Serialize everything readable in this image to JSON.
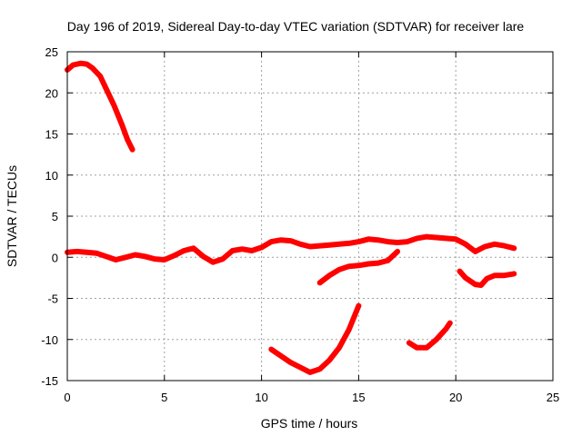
{
  "chart_data": {
    "type": "line",
    "title": "Day 196 of 2019, Sidereal Day-to-day VTEC variation (SDTVAR) for receiver lare",
    "xlabel": "GPS time / hours",
    "ylabel": "SDTVAR / TECUs",
    "xlim": [
      0,
      25
    ],
    "ylim": [
      -15,
      25
    ],
    "xticks": [
      0,
      5,
      10,
      15,
      20,
      25
    ],
    "yticks": [
      25,
      20,
      15,
      10,
      5,
      0,
      -5,
      -10,
      -15
    ],
    "grid": true,
    "legend": "none",
    "color": "#ff0000",
    "series": [
      {
        "name": "segment-1",
        "x": [
          0,
          0.3,
          0.7,
          1.0,
          1.3,
          1.7,
          2.0,
          2.4,
          2.8,
          3.1,
          3.35
        ],
        "y": [
          22.8,
          23.4,
          23.6,
          23.5,
          23.0,
          22.0,
          20.5,
          18.5,
          16.2,
          14.3,
          13.1
        ]
      },
      {
        "name": "segment-2",
        "x": [
          0,
          0.5,
          1.0,
          1.5,
          2.0,
          2.5,
          3.0,
          3.5,
          4.0,
          4.5,
          5.0,
          5.5,
          6.0,
          6.5,
          7.0,
          7.5,
          8.0,
          8.5,
          9.0,
          9.5,
          10.0,
          10.5,
          11.0,
          11.5,
          12.0,
          12.5,
          13.0,
          13.5,
          14.0,
          14.5,
          15.0,
          15.5,
          16.0,
          16.5,
          17.0,
          17.5,
          18.0,
          18.5,
          19.0,
          19.5,
          20.0,
          20.5,
          21.0,
          21.5,
          22.0,
          22.5,
          23.0
        ],
        "y": [
          0.6,
          0.7,
          0.6,
          0.5,
          0.1,
          -0.3,
          0.0,
          0.3,
          0.1,
          -0.2,
          -0.3,
          0.2,
          0.8,
          1.1,
          0.1,
          -0.6,
          -0.2,
          0.8,
          1.0,
          0.8,
          1.2,
          1.9,
          2.1,
          2.0,
          1.6,
          1.3,
          1.4,
          1.5,
          1.6,
          1.7,
          1.9,
          2.2,
          2.1,
          1.9,
          1.8,
          1.9,
          2.3,
          2.5,
          2.4,
          2.3,
          2.2,
          1.6,
          0.7,
          1.3,
          1.6,
          1.4,
          1.1
        ]
      },
      {
        "name": "segment-3",
        "x": [
          13.0,
          13.5,
          14.0,
          14.5,
          15.0,
          15.5,
          16.0,
          16.5,
          17.0
        ],
        "y": [
          -3.1,
          -2.2,
          -1.5,
          -1.1,
          -1.0,
          -0.8,
          -0.7,
          -0.4,
          0.7
        ]
      },
      {
        "name": "segment-4",
        "x": [
          10.5,
          11.0,
          11.5,
          12.0,
          12.5,
          13.0,
          13.5,
          14.0,
          14.5,
          15.0
        ],
        "y": [
          -11.2,
          -12.0,
          -12.8,
          -13.4,
          -14.0,
          -13.6,
          -12.5,
          -11.0,
          -8.8,
          -5.9
        ]
      },
      {
        "name": "segment-5",
        "x": [
          17.6,
          18.0,
          18.5,
          19.0,
          19.5,
          19.7
        ],
        "y": [
          -10.4,
          -11.0,
          -11.0,
          -10.0,
          -8.7,
          -8.0
        ]
      },
      {
        "name": "segment-6",
        "x": [
          20.2,
          20.5,
          21.0,
          21.3,
          21.6,
          22.0,
          22.5,
          23.0
        ],
        "y": [
          -1.7,
          -2.5,
          -3.3,
          -3.4,
          -2.6,
          -2.2,
          -2.2,
          -2.0
        ]
      }
    ]
  }
}
